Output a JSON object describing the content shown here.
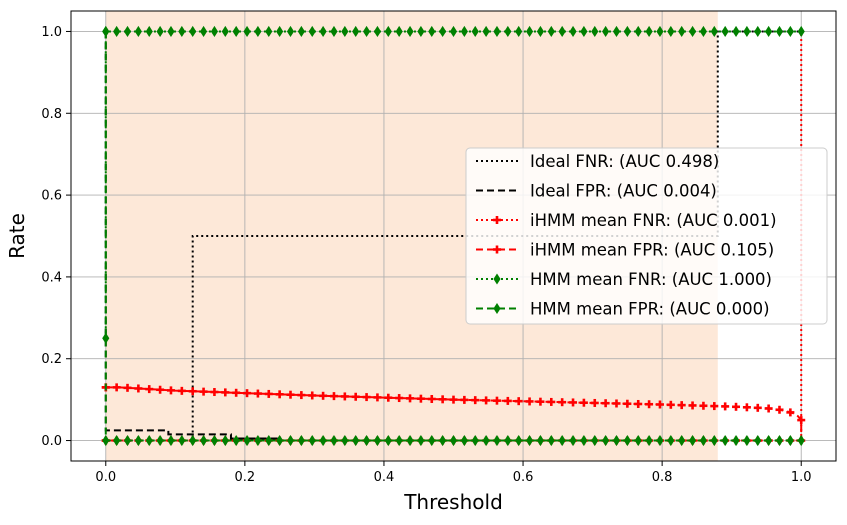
{
  "chart_data": {
    "type": "line",
    "xlabel": "Threshold",
    "ylabel": "Rate",
    "xlim": [
      -0.05,
      1.05
    ],
    "ylim": [
      -0.05,
      1.05
    ],
    "xticks": [
      0.0,
      0.2,
      0.4,
      0.6,
      0.8,
      1.0
    ],
    "yticks": [
      0.0,
      0.2,
      0.4,
      0.6,
      0.8,
      1.0
    ],
    "xtick_labels": [
      "0.0",
      "0.2",
      "0.4",
      "0.6",
      "0.8",
      "1.0"
    ],
    "ytick_labels": [
      "0.0",
      "0.2",
      "0.4",
      "0.6",
      "0.8",
      "1.0"
    ],
    "grid": true,
    "legend_position": "center-right",
    "shaded_region": {
      "x_start": 0.0,
      "x_end": 0.88,
      "color": "#fde8d8"
    },
    "series": [
      {
        "name": "Ideal FNR: (AUC 0.498)",
        "color": "#000000",
        "style": "dotted",
        "marker": "none",
        "x": [
          0.0,
          0.0,
          0.125,
          0.125,
          0.88,
          0.88,
          1.0
        ],
        "y": [
          0.0,
          0.0,
          0.0,
          0.5,
          0.5,
          1.0,
          1.0
        ]
      },
      {
        "name": "Ideal FPR: (AUC 0.004)",
        "color": "#000000",
        "style": "dashed",
        "marker": "none",
        "x": [
          0.0,
          0.0,
          0.09,
          0.09,
          0.18,
          0.18,
          0.25
        ],
        "y": [
          1.0,
          0.025,
          0.025,
          0.015,
          0.015,
          0.005,
          0.005
        ]
      },
      {
        "name": "iHMM mean FNR: (AUC 0.001)",
        "color": "#ff0000",
        "style": "dotted",
        "marker": "plus",
        "x": [
          0.0,
          0.98,
          0.99,
          0.995,
          1.0,
          1.0
        ],
        "y": [
          0.0,
          0.0,
          0.0,
          0.0,
          0.0,
          1.0
        ]
      },
      {
        "name": "iHMM mean FPR: (AUC 0.105)",
        "color": "#ff0000",
        "style": "dashed",
        "marker": "plus",
        "x": [
          0.0,
          0.02,
          0.1,
          0.2,
          0.3,
          0.4,
          0.5,
          0.6,
          0.7,
          0.8,
          0.9,
          0.95,
          0.97,
          0.98,
          0.99,
          0.995,
          1.0,
          1.0
        ],
        "y": [
          0.13,
          0.13,
          0.122,
          0.116,
          0.11,
          0.105,
          0.1,
          0.096,
          0.092,
          0.088,
          0.083,
          0.079,
          0.075,
          0.071,
          0.066,
          0.06,
          0.05,
          0.0
        ]
      },
      {
        "name": "HMM mean FNR: (AUC 1.000)",
        "color": "#008000",
        "style": "dotted",
        "marker": "diamond",
        "x": [
          0.0,
          0.0,
          1.0
        ],
        "y": [
          0.25,
          1.0,
          1.0
        ]
      },
      {
        "name": "HMM mean FPR: (AUC 0.000)",
        "color": "#008000",
        "style": "dashed",
        "marker": "diamond",
        "x": [
          0.0,
          0.0,
          1.0
        ],
        "y": [
          1.0,
          0.0,
          0.0
        ]
      }
    ]
  }
}
